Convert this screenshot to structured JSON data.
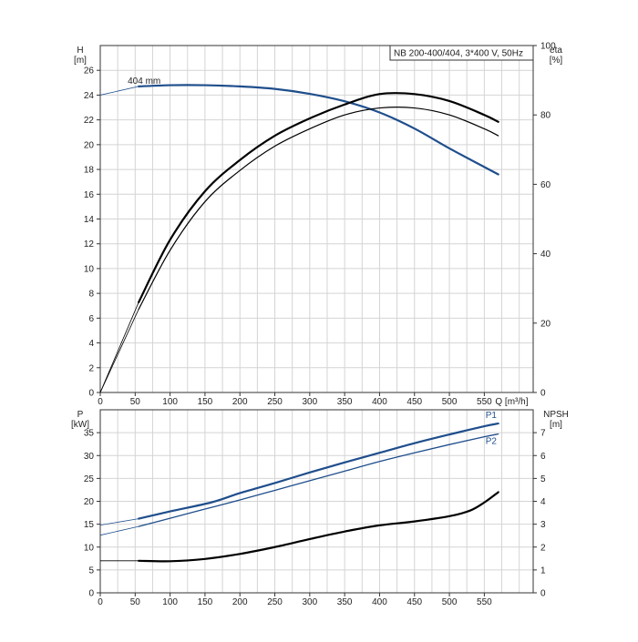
{
  "chart_data": [
    {
      "type": "line",
      "panel": "head-efficiency",
      "title": "NB 200-400/404, 3*400 V, 50Hz",
      "xlabel": "Q [m³/h]",
      "xlim": [
        0,
        620
      ],
      "x_ticks": [
        0,
        50,
        100,
        150,
        200,
        250,
        300,
        350,
        400,
        450,
        500,
        550
      ],
      "left_axis": {
        "label_top": "H",
        "label_unit": "[m]",
        "ylim": [
          0,
          28
        ],
        "ticks": [
          0,
          2,
          4,
          6,
          8,
          10,
          12,
          14,
          16,
          18,
          20,
          22,
          24,
          26
        ]
      },
      "right_axis": {
        "label_top": "eta",
        "label_unit": "[%]",
        "ylim": [
          0,
          100
        ],
        "ticks": [
          0,
          20,
          40,
          60,
          80,
          100
        ]
      },
      "grid": true,
      "series": [
        {
          "name": "404 mm",
          "axis": "left",
          "color": "#1f4e8c",
          "x": [
            55,
            100,
            150,
            200,
            250,
            300,
            350,
            400,
            450,
            500,
            550,
            570
          ],
          "y": [
            24.7,
            24.8,
            24.8,
            24.7,
            24.5,
            24.1,
            23.5,
            22.6,
            21.3,
            19.7,
            18.2,
            17.6
          ],
          "extrapolated_from": [
            0,
            24.0
          ]
        },
        {
          "axis": "right",
          "color": "#000000",
          "x": [
            55,
            100,
            150,
            200,
            250,
            300,
            350,
            400,
            450,
            500,
            550,
            570
          ],
          "y": [
            24,
            41,
            55,
            64,
            71,
            76,
            80,
            82,
            82,
            80,
            76,
            74
          ],
          "extrapolated_from": [
            0,
            0
          ]
        },
        {
          "axis": "right",
          "color": "#000000",
          "x": [
            55,
            100,
            150,
            200,
            250,
            300,
            350,
            400,
            450,
            500,
            550,
            570
          ],
          "y": [
            26,
            44,
            58,
            67,
            74,
            79,
            83,
            86,
            86,
            84,
            80,
            78
          ],
          "extrapolated_from": [
            0,
            0
          ]
        }
      ]
    },
    {
      "type": "line",
      "panel": "power-npsh",
      "xlim": [
        0,
        620
      ],
      "x_ticks": [
        0,
        50,
        100,
        150,
        200,
        250,
        300,
        350,
        400,
        450,
        500,
        550
      ],
      "left_axis": {
        "label_top": "P",
        "label_unit": "[kW]",
        "ylim": [
          0,
          40
        ],
        "ticks": [
          0,
          5,
          10,
          15,
          20,
          25,
          30,
          35
        ]
      },
      "right_axis": {
        "label_top": "NPSH",
        "label_unit": "[m]",
        "ylim": [
          0,
          8
        ],
        "ticks": [
          0,
          1,
          2,
          3,
          4,
          5,
          6,
          7
        ]
      },
      "grid": true,
      "series": [
        {
          "name": "P1",
          "axis": "left",
          "color": "#1f4e8c",
          "x": [
            55,
            100,
            160,
            200,
            250,
            300,
            350,
            400,
            450,
            500,
            550,
            570
          ],
          "y": [
            16.2,
            17.8,
            19.8,
            21.8,
            24.0,
            26.3,
            28.5,
            30.6,
            32.7,
            34.6,
            36.4,
            37.0
          ],
          "extrapolated_from": [
            0,
            14.8
          ]
        },
        {
          "name": "P2",
          "axis": "left",
          "color": "#1f4e8c",
          "x": [
            55,
            100,
            150,
            200,
            250,
            300,
            350,
            400,
            450,
            500,
            550,
            570
          ],
          "y": [
            14.5,
            16.3,
            18.3,
            20.3,
            22.4,
            24.5,
            26.6,
            28.7,
            30.6,
            32.4,
            34.1,
            34.7
          ],
          "extrapolated_from": [
            0,
            12.6
          ]
        },
        {
          "axis": "right",
          "color": "#000000",
          "x": [
            55,
            100,
            150,
            200,
            250,
            300,
            350,
            400,
            450,
            500,
            530,
            550,
            570
          ],
          "y": [
            1.4,
            1.38,
            1.48,
            1.7,
            2.0,
            2.35,
            2.68,
            2.95,
            3.12,
            3.35,
            3.6,
            3.95,
            4.4
          ],
          "extrapolated_from": [
            0,
            1.4
          ]
        }
      ]
    }
  ]
}
